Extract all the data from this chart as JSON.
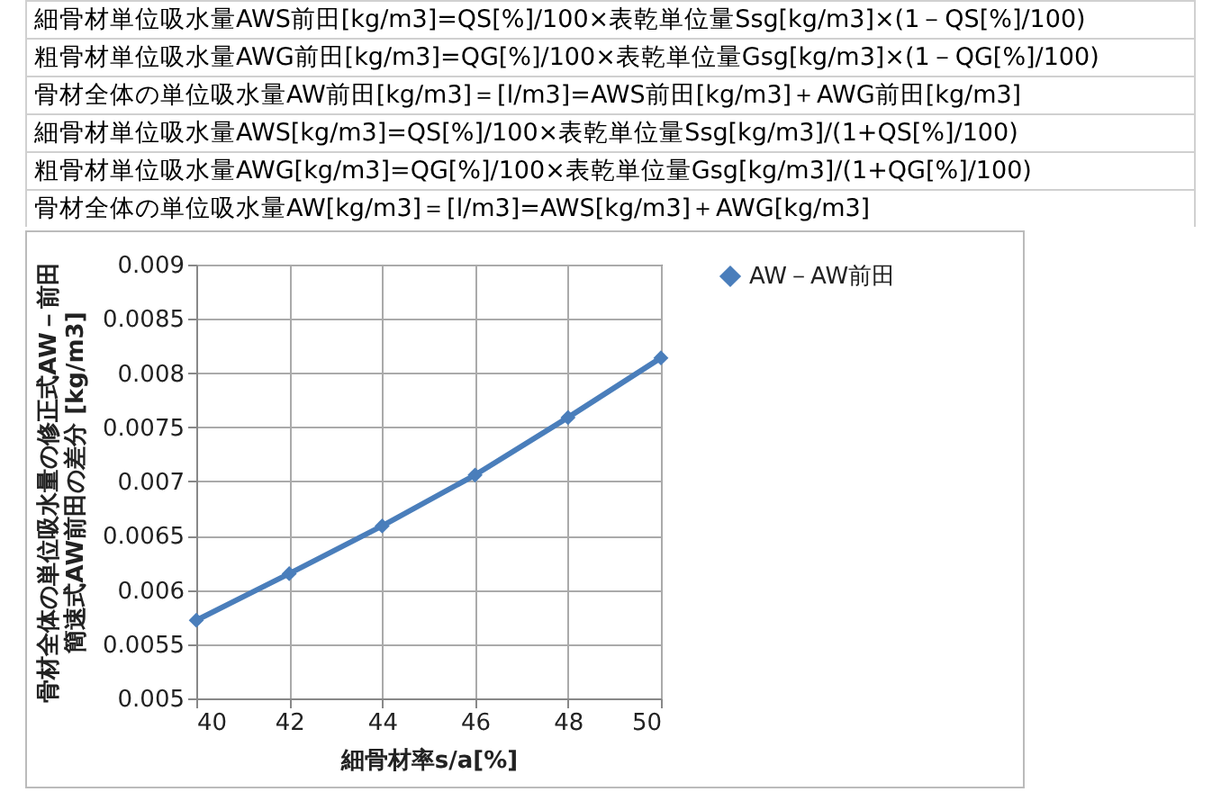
{
  "chart_data": {
    "type": "line",
    "xlabel": "細骨材率s/a[%]",
    "ylabel": "骨材全体の単位吸水量の修正式AW－前田簡速式AW前田の差分 [kg/m3]",
    "annotations": [
      "細骨材単位吸水量AWS前田[kg/m3]=QS[%]/100×表乾単位量Ssg[kg/m3]×(1－QS[%]/100)",
      "粗骨材単位吸水量AWG前田[kg/m3]=QG[%]/100×表乾単位量Gsg[kg/m3]×(1－QG[%]/100)",
      "骨材全体の単位吸水量AW前田[kg/m3]＝[l/m3]=AWS前田[kg/m3]＋AWG前田[kg/m3]",
      "細骨材単位吸水量AWS[kg/m3]=QS[%]/100×表乾単位量Ssg[kg/m3]/(1+QS[%]/100)",
      "粗骨材単位吸水量AWG[kg/m3]=QG[%]/100×表乾単位量Gsg[kg/m3]/(1+QG[%]/100)",
      "骨材全体の単位吸水量AW[kg/m3]＝[l/m3]=AWS[kg/m3]＋AWG[kg/m3]"
    ],
    "x": [
      40,
      42,
      44,
      46,
      48,
      50
    ],
    "series": [
      {
        "name": "AW－AW前田",
        "color": "#4a7ebb",
        "values": [
          0.00572,
          0.00615,
          0.00659,
          0.00706,
          0.00759,
          0.00814
        ]
      }
    ],
    "xlim": [
      40,
      50
    ],
    "xticks": [
      40,
      42,
      44,
      46,
      48,
      50
    ],
    "ylim": [
      0.005,
      0.009
    ],
    "yticks": [
      0.005,
      0.0055,
      0.006,
      0.0065,
      0.007,
      0.0075,
      0.008,
      0.0085,
      0.009
    ],
    "grid": true,
    "legend": "right",
    "marker": "diamond",
    "line_style": "solid"
  }
}
